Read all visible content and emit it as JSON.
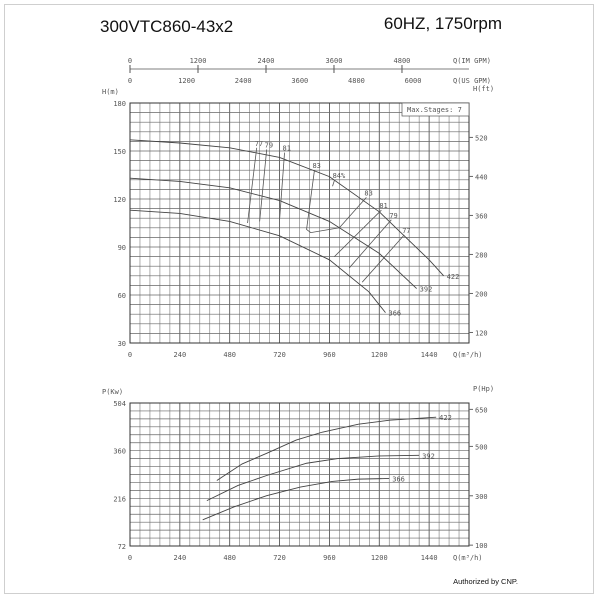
{
  "header": {
    "model": "300VTC860-43x2",
    "speed": "60HZ, 1750rpm"
  },
  "footer": {
    "authorized": "Authorized by CNP."
  },
  "chart_data": [
    {
      "type": "line",
      "title": "",
      "xlabel": "Q(m³/h)",
      "ylabel": "H(m)",
      "y2label": "H(ft)",
      "x2_axes": [
        {
          "label": "Q(IM GPM)",
          "ticks": [
            0,
            1200,
            2400,
            3600,
            4800
          ],
          "factor": 3.666
        },
        {
          "label": "Q(US GPM)",
          "ticks": [
            0,
            1200,
            2400,
            3600,
            4800,
            6000
          ],
          "factor": 4.403
        }
      ],
      "xlim": [
        0,
        1632
      ],
      "ylim": [
        30,
        180
      ],
      "xticks": [
        0,
        240,
        480,
        720,
        960,
        1200,
        1440
      ],
      "yticks": [
        30,
        60,
        90,
        120,
        150,
        180
      ],
      "y2ticks": [
        120,
        200,
        280,
        360,
        440,
        520
      ],
      "grid": true,
      "annotation": "Max.Stages: 7",
      "series": [
        {
          "name": "422",
          "x": [
            0,
            240,
            480,
            720,
            960,
            1200,
            1440,
            1510
          ],
          "y": [
            157,
            155,
            152,
            146,
            134,
            112,
            82,
            72
          ]
        },
        {
          "name": "392",
          "x": [
            0,
            240,
            480,
            720,
            960,
            1200,
            1380
          ],
          "y": [
            133,
            131,
            127,
            119,
            106,
            86,
            64
          ]
        },
        {
          "name": "366",
          "x": [
            0,
            240,
            480,
            720,
            960,
            1150,
            1230
          ],
          "y": [
            113,
            111,
            106,
            97,
            82,
            62,
            49
          ]
        }
      ],
      "efficiency": [
        {
          "label": "77",
          "x": [
            610,
            566
          ],
          "y": [
            152,
            105
          ]
        },
        {
          "label": "79",
          "x": [
            658,
            624
          ],
          "y": [
            151,
            106
          ]
        },
        {
          "label": "81",
          "x": [
            744,
            720
          ],
          "y": [
            149,
            107
          ]
        },
        {
          "label": "83",
          "x": [
            888,
            850,
            870,
            1008,
            1138
          ],
          "y": [
            138,
            101,
            99,
            102,
            121
          ]
        },
        {
          "label": "84%",
          "x": [
            985,
            975
          ],
          "y": [
            132,
            128
          ]
        },
        {
          "label": "83",
          "x": [
            1138
          ],
          "y": [
            121
          ]
        },
        {
          "label": "81",
          "x": [
            1210,
            984
          ],
          "y": [
            113,
            84
          ]
        },
        {
          "label": "79",
          "x": [
            1258,
            1056
          ],
          "y": [
            107,
            77
          ]
        },
        {
          "label": "77",
          "x": [
            1320,
            1118
          ],
          "y": [
            97.5,
            68
          ]
        }
      ]
    },
    {
      "type": "line",
      "title": "",
      "xlabel": "Q(m³/h)",
      "ylabel": "P(Kw)",
      "y2label": "P(Hp)",
      "xlim": [
        0,
        1632
      ],
      "ylim": [
        72,
        504
      ],
      "xticks": [
        0,
        240,
        480,
        720,
        960,
        1200,
        1440
      ],
      "yticks": [
        72,
        216,
        360,
        504
      ],
      "y2ticks": [
        100,
        300,
        500,
        650
      ],
      "grid": true,
      "series": [
        {
          "name": "422",
          "x": [
            418,
            540,
            658,
            800,
            926,
            1100,
            1250,
            1474
          ],
          "y": [
            270,
            320,
            352,
            392,
            416,
            440,
            452,
            461
          ]
        },
        {
          "name": "392",
          "x": [
            370,
            520,
            658,
            850,
            1000,
            1200,
            1392
          ],
          "y": [
            209,
            255,
            285,
            322,
            336,
            344,
            346
          ]
        },
        {
          "name": "366",
          "x": [
            350,
            500,
            658,
            820,
            974,
            1100,
            1248
          ],
          "y": [
            151,
            190,
            224,
            250,
            267,
            274,
            276
          ]
        }
      ]
    }
  ]
}
